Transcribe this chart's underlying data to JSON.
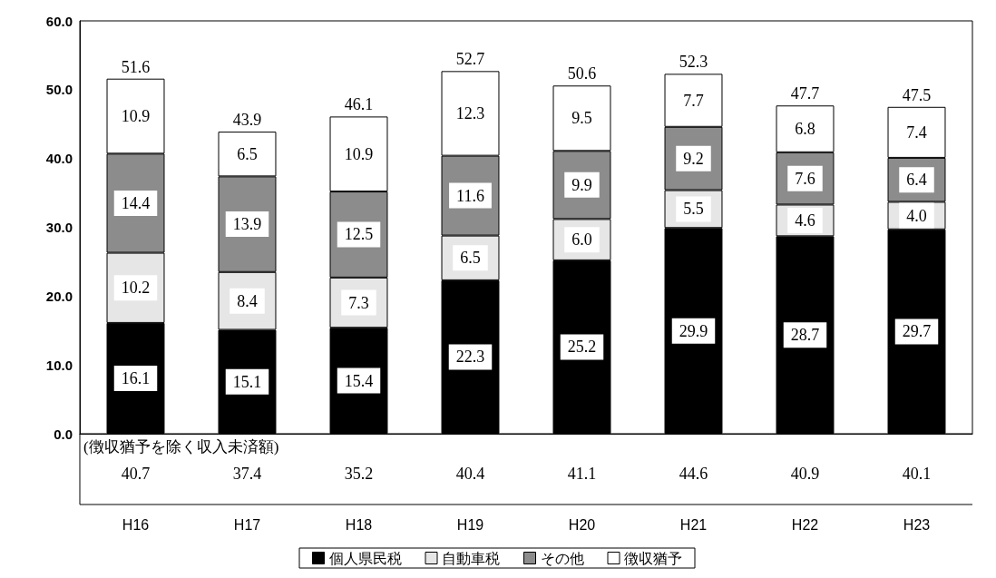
{
  "chart_data": {
    "type": "bar",
    "stacked": true,
    "grid": false,
    "legend": "bottom",
    "categories": [
      "H16",
      "H17",
      "H18",
      "H19",
      "H20",
      "H21",
      "H22",
      "H23"
    ],
    "series": [
      {
        "name": "個人県民税",
        "color": "#000000",
        "values": [
          16.1,
          15.1,
          15.4,
          22.3,
          25.2,
          29.9,
          28.7,
          29.7
        ],
        "value_labels": [
          "16.1",
          "15.1",
          "15.4",
          "22.3",
          "25.2",
          "29.9",
          "28.7",
          "29.7"
        ]
      },
      {
        "name": "自動車税",
        "color": "#e6e6e6",
        "values": [
          10.2,
          8.4,
          7.3,
          6.5,
          6.0,
          5.5,
          4.6,
          4.0
        ],
        "value_labels": [
          "10.2",
          "8.4",
          "7.3",
          "6.5",
          "6.0",
          "5.5",
          "4.6",
          "4.0"
        ]
      },
      {
        "name": "その他",
        "color": "#8c8c8c",
        "values": [
          14.4,
          13.9,
          12.5,
          11.6,
          9.9,
          9.2,
          7.6,
          6.4
        ],
        "value_labels": [
          "14.4",
          "13.9",
          "12.5",
          "11.6",
          "9.9",
          "9.2",
          "7.6",
          "6.4"
        ]
      },
      {
        "name": "徴収猶予",
        "color": "#ffffff",
        "values": [
          10.9,
          6.5,
          10.9,
          12.3,
          9.5,
          7.7,
          6.8,
          7.4
        ],
        "value_labels": [
          "10.9",
          "6.5",
          "10.9",
          "12.3",
          "9.5",
          "7.7",
          "6.8",
          "7.4"
        ]
      }
    ],
    "totals": [
      "51.6",
      "43.9",
      "46.1",
      "52.7",
      "50.6",
      "52.3",
      "47.7",
      "47.5"
    ],
    "ylim": [
      0,
      60
    ],
    "yticks": [
      {
        "value": 0,
        "label": "0.0"
      },
      {
        "value": 10,
        "label": "10.0"
      },
      {
        "value": 20,
        "label": "20.0"
      },
      {
        "value": 30,
        "label": "30.0"
      },
      {
        "value": 40,
        "label": "40.0"
      },
      {
        "value": 50,
        "label": "50.0"
      },
      {
        "value": 60,
        "label": "60.0"
      }
    ],
    "annotations": [
      "(徴収猶予を除く収入未済額)",
      "40.7",
      "37.4",
      "35.2",
      "40.4",
      "41.1",
      "44.6",
      "40.9",
      "40.1"
    ]
  }
}
